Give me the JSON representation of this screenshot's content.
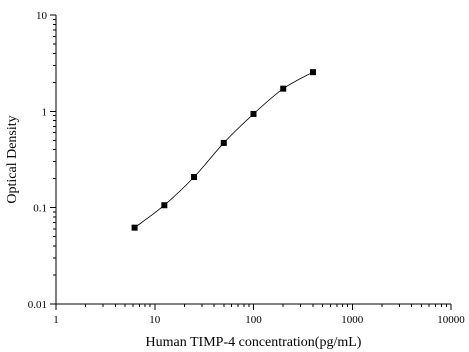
{
  "chart_data": {
    "type": "scatter",
    "title": "",
    "xlabel": "Human TIMP-4 concentration(pg/mL)",
    "ylabel": "Optical Density",
    "xscale": "log",
    "yscale": "log",
    "xlim": [
      1,
      10000
    ],
    "ylim": [
      0.01,
      10
    ],
    "x_ticks": [
      1,
      10,
      100,
      1000,
      10000
    ],
    "x_tick_labels": [
      "1",
      "10",
      "100",
      "1000",
      "10000"
    ],
    "y_ticks": [
      0.01,
      0.1,
      1,
      10
    ],
    "y_tick_labels": [
      "0.01",
      "0.1",
      "1",
      "10"
    ],
    "grid": false,
    "legend": "none",
    "marker": "square",
    "series": [
      {
        "x": [
          6.25,
          12.5,
          25,
          50,
          100,
          200,
          400
        ],
        "y": [
          0.062,
          0.106,
          0.208,
          0.47,
          0.94,
          1.72,
          2.55
        ],
        "line": "smooth"
      }
    ]
  }
}
